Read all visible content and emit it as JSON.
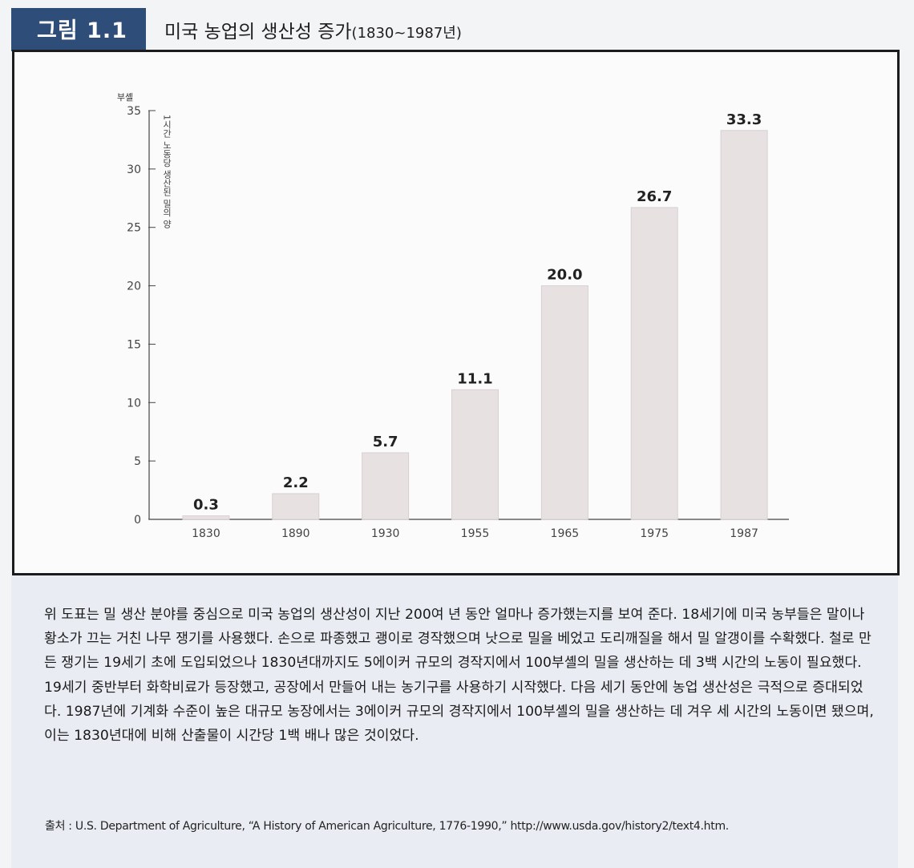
{
  "figure": {
    "label": "그림 1.1",
    "title_main": "미국 농업의 생산성 증가",
    "title_paren": "(1830~1987년)"
  },
  "chart_data": {
    "type": "bar",
    "title": "미국 농업의 생산성 증가(1830~1987년)",
    "ylabel": "1시간 노동당 생산된 밀의 양",
    "yunit": "부셸",
    "ylim": [
      0,
      35
    ],
    "yticks": [
      "0",
      "5",
      "10",
      "15",
      "20",
      "25",
      "30",
      "35"
    ],
    "categories": [
      "1830",
      "1890",
      "1930",
      "1955",
      "1965",
      "1975",
      "1987"
    ],
    "values": [
      0.3,
      2.2,
      5.7,
      11.1,
      20.0,
      26.7,
      33.3
    ],
    "value_labels": [
      "0.3",
      "2.2",
      "5.7",
      "11.1",
      "20.0",
      "26.7",
      "33.3"
    ]
  },
  "body": {
    "paragraph": "위 도표는 밀 생산 분야를 중심으로 미국 농업의 생산성이 지난 200여 년 동안 얼마나 증가했는지를 보여 준다. 18세기에 미국 농부들은 말이나 황소가 끄는 거친 나무 쟁기를 사용했다. 손으로 파종했고 괭이로 경작했으며 낫으로 밀을 베었고 도리깨질을 해서 밀 알갱이를 수확했다. 철로 만든 쟁기는 19세기 초에 도입되었으나 1830년대까지도 5에이커 규모의 경작지에서 100부셸의 밀을 생산하는 데 3백 시간의 노동이 필요했다. 19세기 중반부터 화학비료가 등장했고, 공장에서 만들어 내는 농기구를 사용하기 시작했다. 다음 세기 동안에 농업 생산성은 극적으로 증대되었다. 1987년에 기계화 수준이 높은 대규모 농장에서는 3에이커 규모의 경작지에서 100부셸의 밀을 생산하는 데 겨우 세 시간의 노동이면 됐으며, 이는 1830년대에 비해 산출물이 시간당 1백 배나 많은 것이었다.",
    "source": "출처 : U.S. Department of Agriculture, “A History of American Agriculture, 1776-1990,” http://www.usda.gov/history2/text4.htm."
  },
  "colors": {
    "label_bg": "#2e4d78",
    "bar_fill": "#e8e1e2",
    "panel_bg": "#e9edf3"
  }
}
